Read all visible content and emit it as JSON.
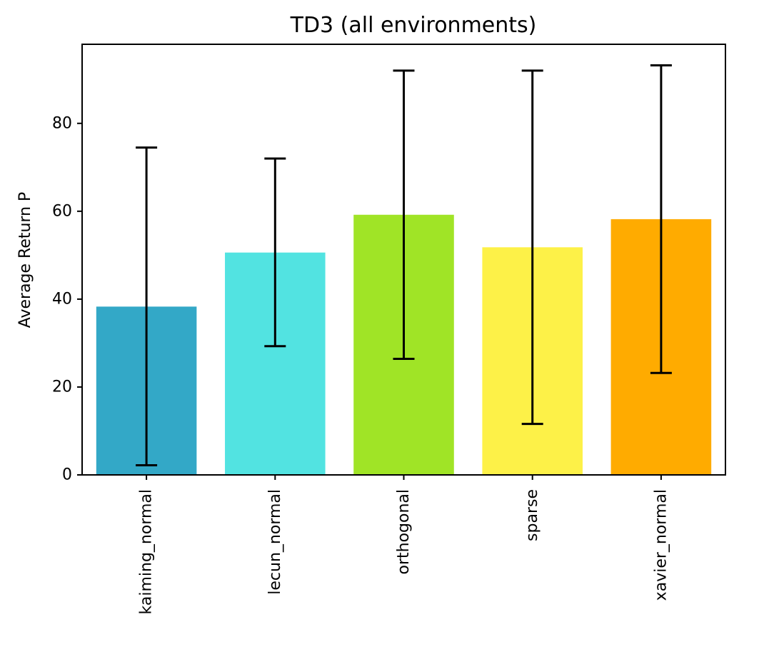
{
  "chart_data": {
    "type": "bar",
    "title": "TD3 (all environments)",
    "xlabel": "",
    "ylabel": "Average Return P",
    "categories": [
      "kaiming_normal",
      "lecun_normal",
      "orthogonal",
      "sparse",
      "xavier_normal"
    ],
    "values": [
      38.3,
      50.6,
      59.2,
      51.8,
      58.2
    ],
    "error_low": [
      2.2,
      29.3,
      26.4,
      11.6,
      23.2
    ],
    "error_high": [
      74.5,
      72.0,
      92.0,
      92.0,
      93.2
    ],
    "colors": [
      "#33a8c7",
      "#52e3e1",
      "#a0e426",
      "#fdf148",
      "#ffab00"
    ],
    "yticks": [
      0,
      20,
      40,
      60,
      80
    ],
    "ylim": [
      0,
      98
    ],
    "grid": false,
    "legend": "none"
  }
}
